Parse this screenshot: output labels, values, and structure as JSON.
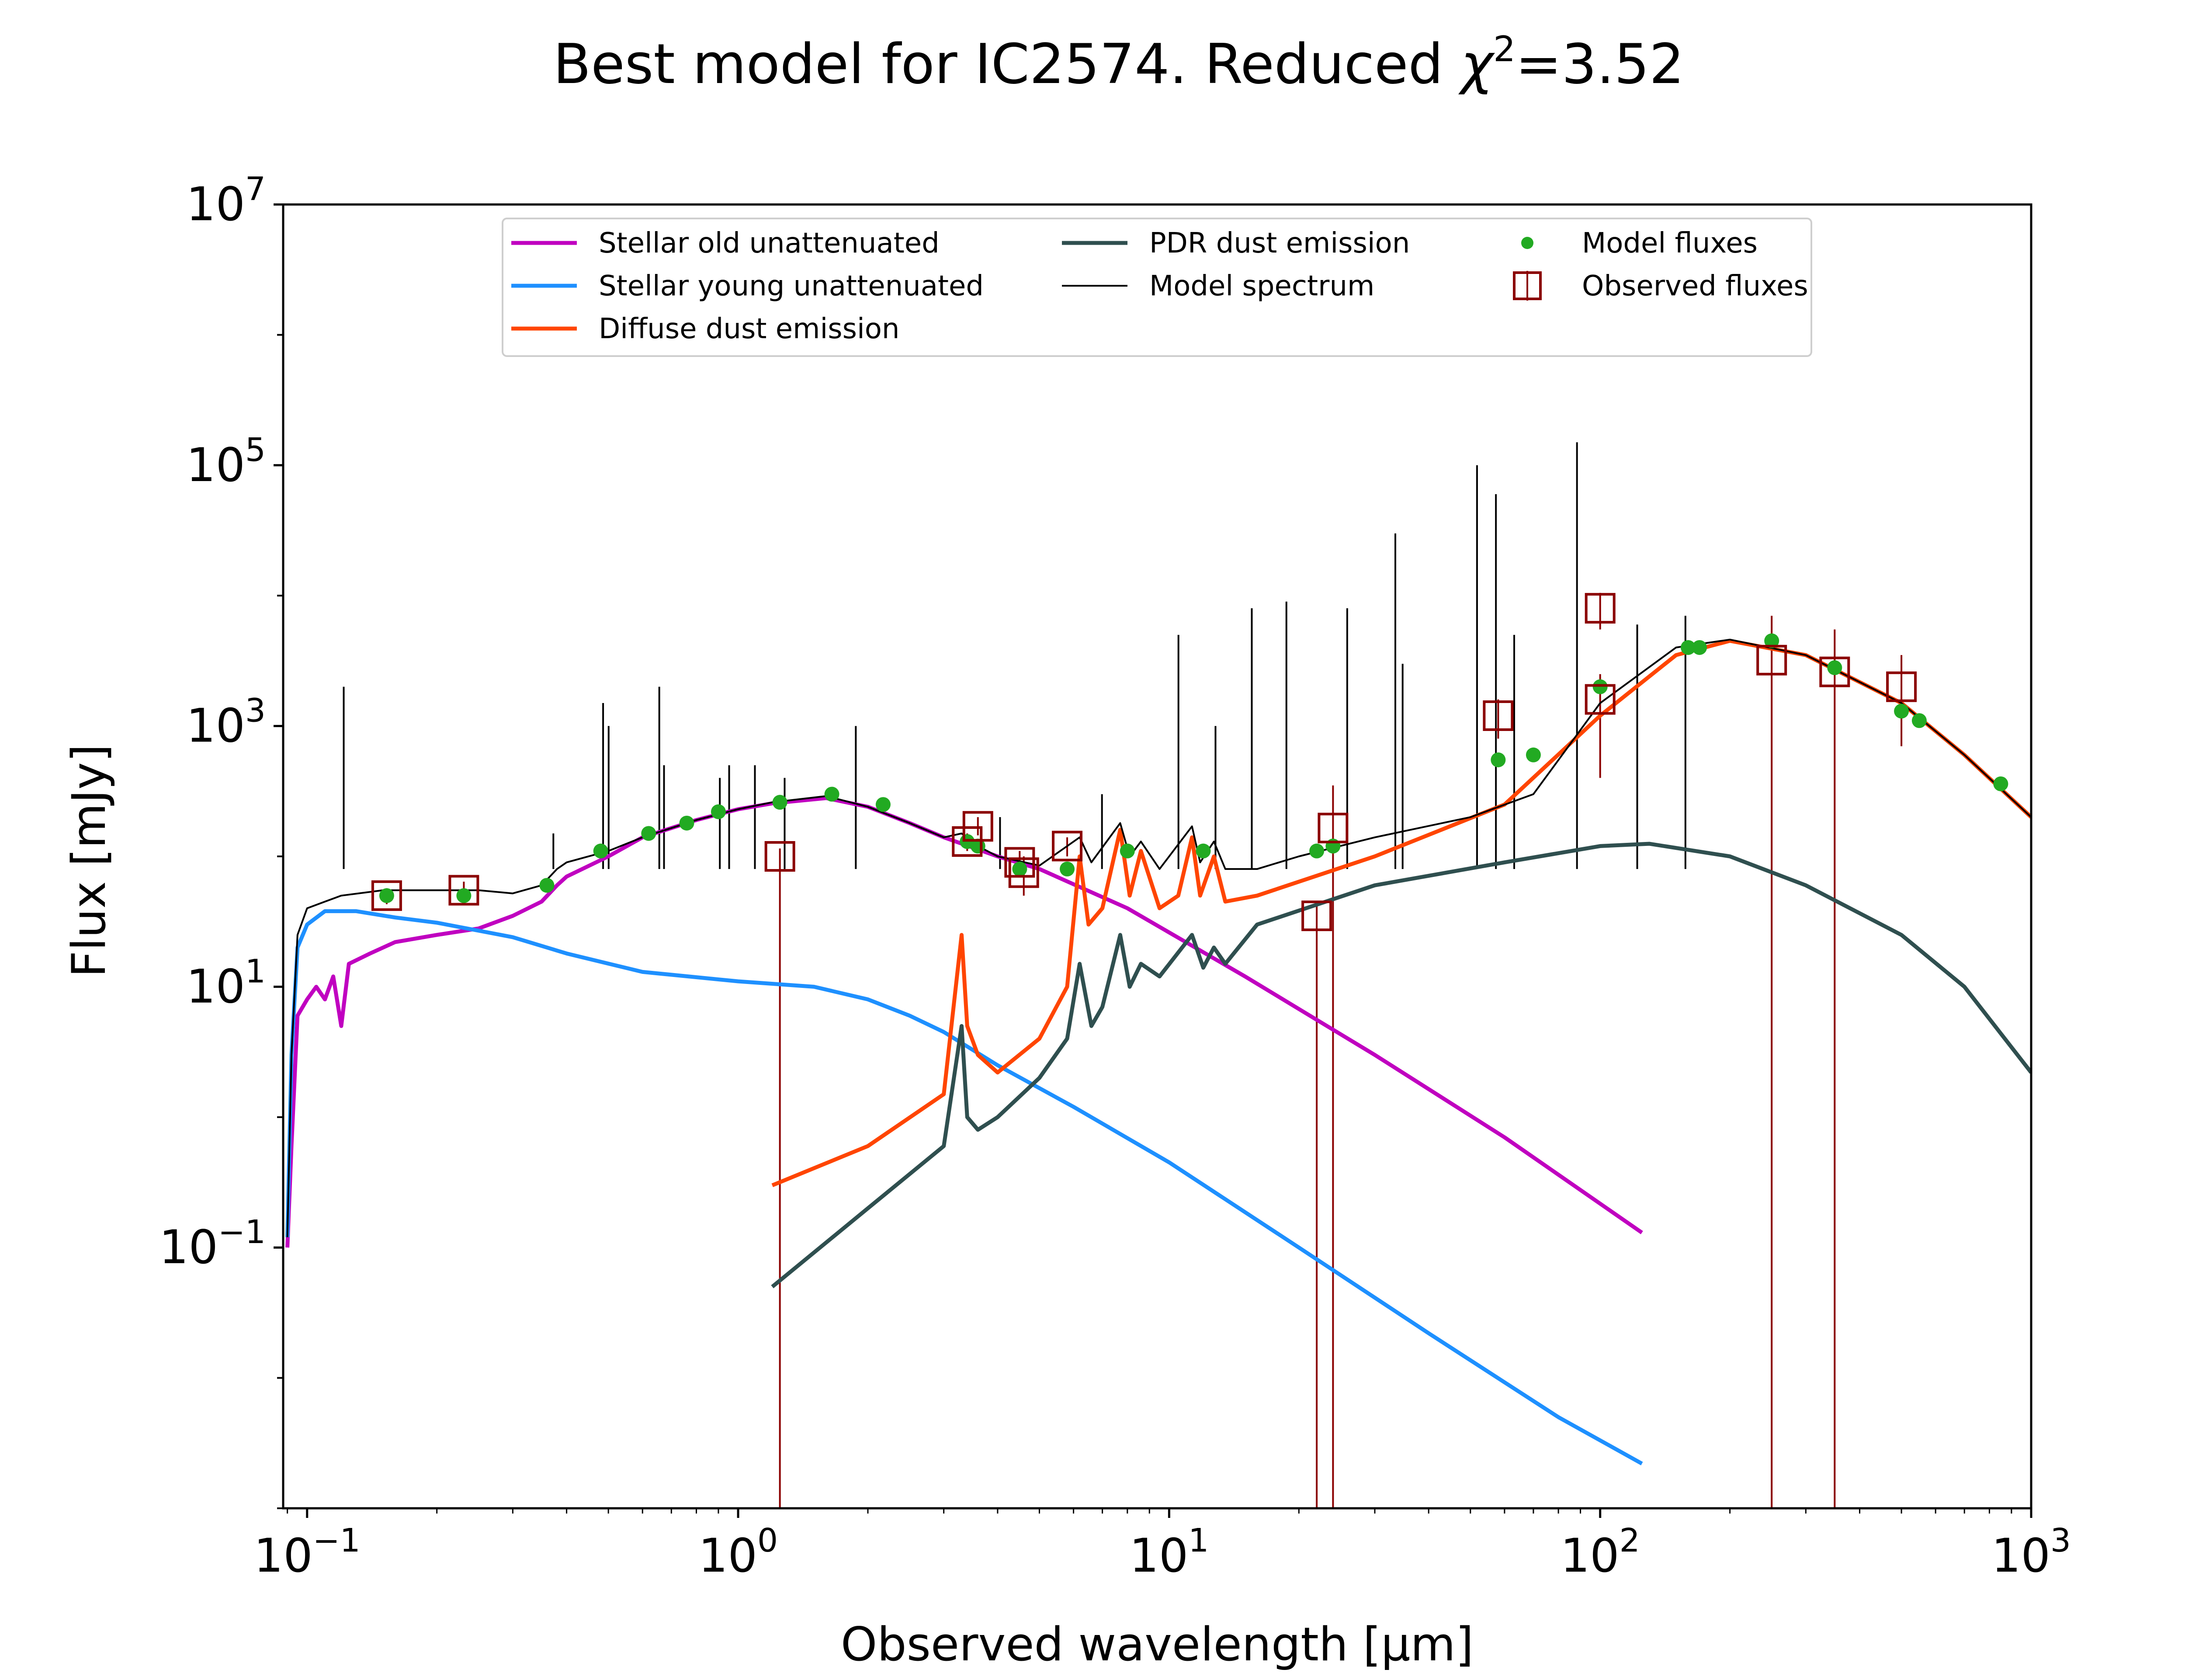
{
  "chart_data": {
    "type": "line",
    "title": "Best model for IC2574. Reduced χ²=3.52",
    "title_parts": {
      "prefix": "Best model for IC2574. Reduced ",
      "chi": "χ",
      "sup": "2",
      "suffix": "=3.52"
    },
    "xlabel": "Observed wavelength [μm]",
    "ylabel": "Flux [mJy]",
    "x_scale": "log",
    "y_scale": "log",
    "xlim": [
      0.088,
      1000
    ],
    "ylim": [
      0.001,
      10000000
    ],
    "x_ticks": [
      {
        "base": "10",
        "exp": "−1",
        "value": 0.1
      },
      {
        "base": "10",
        "exp": "0",
        "value": 1
      },
      {
        "base": "10",
        "exp": "1",
        "value": 10
      },
      {
        "base": "10",
        "exp": "2",
        "value": 100
      },
      {
        "base": "10",
        "exp": "3",
        "value": 1000
      }
    ],
    "y_ticks": [
      {
        "base": "10",
        "exp": "−1",
        "value": 0.1
      },
      {
        "base": "10",
        "exp": "1",
        "value": 10
      },
      {
        "base": "10",
        "exp": "3",
        "value": 1000
      },
      {
        "base": "10",
        "exp": "5",
        "value": 100000
      },
      {
        "base": "10",
        "exp": "7",
        "value": 10000000
      }
    ],
    "grid": false,
    "legend_position": "top-center",
    "legend": [
      {
        "label": "Stellar old unattenuated",
        "color": "#c000c0",
        "kind": "line"
      },
      {
        "label": "Stellar young unattenuated",
        "color": "#1e90ff",
        "kind": "line"
      },
      {
        "label": "Diffuse dust emission",
        "color": "#ff4500",
        "kind": "line"
      },
      {
        "label": "PDR dust emission",
        "color": "#2f4f4f",
        "kind": "line"
      },
      {
        "label": "Model spectrum",
        "color": "#000000",
        "kind": "thin-line"
      },
      {
        "label": "Model fluxes",
        "color": "#22aa22",
        "kind": "dot"
      },
      {
        "label": "Observed fluxes",
        "color": "#8b0000",
        "kind": "square"
      }
    ],
    "series": [
      {
        "name": "Stellar old unattenuated",
        "color": "#c000c0",
        "points": [
          [
            0.09,
            0.1
          ],
          [
            0.092,
            0.6
          ],
          [
            0.095,
            6
          ],
          [
            0.1,
            8
          ],
          [
            0.105,
            10
          ],
          [
            0.11,
            8
          ],
          [
            0.115,
            12
          ],
          [
            0.12,
            5
          ],
          [
            0.125,
            15
          ],
          [
            0.14,
            18
          ],
          [
            0.16,
            22
          ],
          [
            0.2,
            25
          ],
          [
            0.25,
            28
          ],
          [
            0.3,
            35
          ],
          [
            0.35,
            45
          ],
          [
            0.38,
            60
          ],
          [
            0.4,
            70
          ],
          [
            0.5,
            100
          ],
          [
            0.6,
            140
          ],
          [
            0.8,
            190
          ],
          [
            1.0,
            230
          ],
          [
            1.2,
            255
          ],
          [
            1.6,
            280
          ],
          [
            2.0,
            240
          ],
          [
            2.5,
            180
          ],
          [
            3.0,
            140
          ],
          [
            4.0,
            100
          ],
          [
            5.0,
            80
          ],
          [
            8.0,
            40
          ],
          [
            15.0,
            12
          ],
          [
            30.0,
            3
          ],
          [
            60.0,
            0.7
          ],
          [
            125.0,
            0.13
          ]
        ]
      },
      {
        "name": "Stellar young unattenuated",
        "color": "#1e90ff",
        "points": [
          [
            0.09,
            0.12
          ],
          [
            0.092,
            3
          ],
          [
            0.095,
            20
          ],
          [
            0.1,
            30
          ],
          [
            0.11,
            38
          ],
          [
            0.13,
            38
          ],
          [
            0.16,
            34
          ],
          [
            0.2,
            31
          ],
          [
            0.3,
            24
          ],
          [
            0.4,
            18
          ],
          [
            0.6,
            13
          ],
          [
            1.0,
            11
          ],
          [
            1.5,
            10
          ],
          [
            2.0,
            8
          ],
          [
            2.5,
            6
          ],
          [
            3.0,
            4.5
          ],
          [
            4.0,
            2.5
          ],
          [
            6.0,
            1.2
          ],
          [
            10.0,
            0.45
          ],
          [
            20.0,
            0.1
          ],
          [
            40.0,
            0.022
          ],
          [
            80.0,
            0.005
          ],
          [
            125.0,
            0.0022
          ]
        ]
      },
      {
        "name": "Diffuse dust emission",
        "color": "#ff4500",
        "points": [
          [
            1.2,
            0.3
          ],
          [
            2.0,
            0.6
          ],
          [
            3.0,
            1.5
          ],
          [
            3.3,
            25
          ],
          [
            3.4,
            5
          ],
          [
            3.6,
            3
          ],
          [
            4.0,
            2.2
          ],
          [
            5.0,
            4
          ],
          [
            5.8,
            10
          ],
          [
            6.2,
            100
          ],
          [
            6.5,
            30
          ],
          [
            7.0,
            40
          ],
          [
            7.7,
            160
          ],
          [
            8.1,
            50
          ],
          [
            8.6,
            110
          ],
          [
            9.5,
            40
          ],
          [
            10.5,
            50
          ],
          [
            11.3,
            140
          ],
          [
            11.8,
            50
          ],
          [
            12.7,
            100
          ],
          [
            13.5,
            45
          ],
          [
            16.0,
            50
          ],
          [
            30.0,
            100
          ],
          [
            60.0,
            250
          ],
          [
            100.0,
            1200
          ],
          [
            150.0,
            3500
          ],
          [
            200.0,
            4500
          ],
          [
            300.0,
            3500
          ],
          [
            500.0,
            1500
          ],
          [
            700.0,
            600
          ],
          [
            1000.0,
            200
          ]
        ]
      },
      {
        "name": "PDR dust emission",
        "color": "#2f4f4f",
        "points": [
          [
            1.2,
            0.05
          ],
          [
            2.0,
            0.2
          ],
          [
            3.0,
            0.6
          ],
          [
            3.3,
            5
          ],
          [
            3.4,
            1
          ],
          [
            3.6,
            0.8
          ],
          [
            4.0,
            1
          ],
          [
            5.0,
            2
          ],
          [
            5.8,
            4
          ],
          [
            6.2,
            15
          ],
          [
            6.6,
            5
          ],
          [
            7.0,
            7
          ],
          [
            7.7,
            25
          ],
          [
            8.1,
            10
          ],
          [
            8.6,
            15
          ],
          [
            9.5,
            12
          ],
          [
            11.3,
            25
          ],
          [
            12.0,
            14
          ],
          [
            12.7,
            20
          ],
          [
            13.5,
            15
          ],
          [
            16.0,
            30
          ],
          [
            30.0,
            60
          ],
          [
            60.0,
            90
          ],
          [
            100.0,
            120
          ],
          [
            130.0,
            125
          ],
          [
            200.0,
            100
          ],
          [
            300.0,
            60
          ],
          [
            500.0,
            25
          ],
          [
            700.0,
            10
          ],
          [
            1000.0,
            2.2
          ]
        ]
      },
      {
        "name": "Model spectrum",
        "color": "#000000",
        "points": [
          [
            0.09,
            0.12
          ],
          [
            0.092,
            3
          ],
          [
            0.095,
            25
          ],
          [
            0.1,
            40
          ],
          [
            0.11,
            45
          ],
          [
            0.12,
            50
          ],
          [
            0.15,
            55
          ],
          [
            0.2,
            55
          ],
          [
            0.25,
            55
          ],
          [
            0.3,
            52
          ],
          [
            0.35,
            60
          ],
          [
            0.38,
            80
          ],
          [
            0.4,
            90
          ],
          [
            0.5,
            110
          ],
          [
            0.6,
            140
          ],
          [
            0.8,
            190
          ],
          [
            1.0,
            230
          ],
          [
            1.2,
            260
          ],
          [
            1.6,
            290
          ],
          [
            2.0,
            240
          ],
          [
            2.5,
            180
          ],
          [
            3.0,
            140
          ],
          [
            3.3,
            150
          ],
          [
            3.6,
            120
          ],
          [
            4.0,
            100
          ],
          [
            5.0,
            85
          ],
          [
            6.2,
            140
          ],
          [
            6.6,
            90
          ],
          [
            7.7,
            180
          ],
          [
            8.1,
            100
          ],
          [
            8.6,
            130
          ],
          [
            9.5,
            80
          ],
          [
            11.3,
            170
          ],
          [
            11.8,
            90
          ],
          [
            12.7,
            130
          ],
          [
            13.5,
            80
          ],
          [
            16.0,
            80
          ],
          [
            20.0,
            100
          ],
          [
            30.0,
            140
          ],
          [
            50.0,
            200
          ],
          [
            70.0,
            300
          ],
          [
            100.0,
            1500
          ],
          [
            150.0,
            4000
          ],
          [
            200.0,
            4600
          ],
          [
            300.0,
            3500
          ],
          [
            500.0,
            1500
          ],
          [
            700.0,
            600
          ],
          [
            1000.0,
            200
          ]
        ]
      }
    ],
    "emission_lines": [
      {
        "x": 0.1216,
        "y": 2000
      },
      {
        "x": 0.3727,
        "y": 150
      },
      {
        "x": 0.4861,
        "y": 1500
      },
      {
        "x": 0.5007,
        "y": 1000
      },
      {
        "x": 0.6563,
        "y": 2000
      },
      {
        "x": 0.6731,
        "y": 500
      },
      {
        "x": 0.9069,
        "y": 400
      },
      {
        "x": 0.9532,
        "y": 500
      },
      {
        "x": 1.0938,
        "y": 500
      },
      {
        "x": 1.282,
        "y": 400
      },
      {
        "x": 1.875,
        "y": 1000
      },
      {
        "x": 4.052,
        "y": 200
      },
      {
        "x": 6.985,
        "y": 300
      },
      {
        "x": 10.51,
        "y": 5000
      },
      {
        "x": 12.81,
        "y": 1000
      },
      {
        "x": 15.55,
        "y": 8000
      },
      {
        "x": 18.71,
        "y": 9000
      },
      {
        "x": 25.89,
        "y": 8000
      },
      {
        "x": 33.48,
        "y": 30000
      },
      {
        "x": 34.81,
        "y": 3000
      },
      {
        "x": 51.8,
        "y": 100000
      },
      {
        "x": 57.3,
        "y": 60000
      },
      {
        "x": 63.18,
        "y": 5000
      },
      {
        "x": 88.36,
        "y": 150000
      },
      {
        "x": 121.9,
        "y": 6000
      },
      {
        "x": 157.7,
        "y": 7000
      }
    ],
    "model_fluxes": [
      [
        0.153,
        50
      ],
      [
        0.231,
        50
      ],
      [
        0.36,
        60
      ],
      [
        0.48,
        110
      ],
      [
        0.62,
        150
      ],
      [
        0.76,
        180
      ],
      [
        0.9,
        220
      ],
      [
        1.25,
        260
      ],
      [
        1.65,
        300
      ],
      [
        2.17,
        250
      ],
      [
        3.4,
        130
      ],
      [
        3.6,
        120
      ],
      [
        4.5,
        80
      ],
      [
        5.8,
        80
      ],
      [
        8.0,
        110
      ],
      [
        12.0,
        110
      ],
      [
        22.0,
        110
      ],
      [
        24.0,
        120
      ],
      [
        58.0,
        550
      ],
      [
        70.0,
        600
      ],
      [
        100.0,
        2000
      ],
      [
        160.0,
        4000
      ],
      [
        170.0,
        4000
      ],
      [
        250.0,
        4500
      ],
      [
        350.0,
        2800
      ],
      [
        500.0,
        1300
      ],
      [
        550.0,
        1100
      ],
      [
        850.0,
        360
      ]
    ],
    "observed_fluxes": [
      {
        "x": 0.153,
        "y": 50,
        "ylo": 43,
        "yhi": 57
      },
      {
        "x": 0.231,
        "y": 55,
        "ylo": 47,
        "yhi": 64
      },
      {
        "x": 1.25,
        "y": 100,
        "ylo": 0.001,
        "yhi": 115
      },
      {
        "x": 3.4,
        "y": 130,
        "ylo": 110,
        "yhi": 150
      },
      {
        "x": 3.6,
        "y": 170,
        "ylo": 145,
        "yhi": 200
      },
      {
        "x": 4.5,
        "y": 90,
        "ylo": 70,
        "yhi": 110
      },
      {
        "x": 4.6,
        "y": 75,
        "ylo": 50,
        "yhi": 100
      },
      {
        "x": 5.8,
        "y": 120,
        "ylo": 100,
        "yhi": 140
      },
      {
        "x": 22.0,
        "y": 35,
        "ylo": 0.001,
        "yhi": 45
      },
      {
        "x": 24.0,
        "y": 165,
        "ylo": 0.001,
        "yhi": 350
      },
      {
        "x": 58.0,
        "y": 1200,
        "ylo": 800,
        "yhi": 1600
      },
      {
        "x": 100.0,
        "y": 1600,
        "ylo": 400,
        "yhi": 2500
      },
      {
        "x": 100.0,
        "y": 8000,
        "ylo": 5500,
        "yhi": 10500
      },
      {
        "x": 250.0,
        "y": 3200,
        "ylo": 0.001,
        "yhi": 7000
      },
      {
        "x": 350.0,
        "y": 2600,
        "ylo": 0.001,
        "yhi": 5500
      },
      {
        "x": 500.0,
        "y": 2000,
        "ylo": 700,
        "yhi": 3500
      }
    ]
  }
}
